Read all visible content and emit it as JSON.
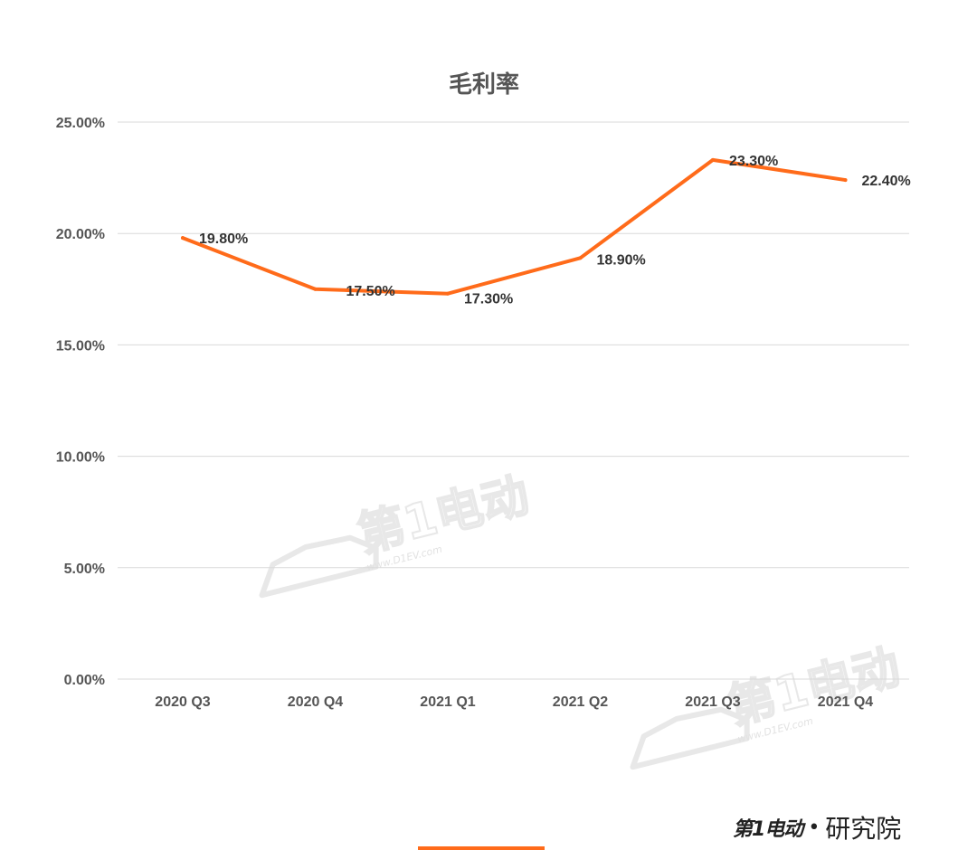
{
  "chart_data": {
    "type": "line",
    "title": "毛利率",
    "categories": [
      "2020 Q3",
      "2020 Q4",
      "2021 Q1",
      "2021 Q2",
      "2021 Q3",
      "2021 Q4"
    ],
    "series": [
      {
        "values": [
          19.8,
          17.5,
          17.3,
          18.9,
          23.3,
          22.4
        ],
        "data_labels": [
          "19.80%",
          "17.50%",
          "17.30%",
          "18.90%",
          "23.30%",
          "22.40%"
        ],
        "color": "#ff6b1a"
      }
    ],
    "ylim": [
      0,
      25
    ],
    "yticks": [
      0,
      5,
      10,
      15,
      20,
      25
    ],
    "ytick_labels": [
      "0.00%",
      "5.00%",
      "10.00%",
      "15.00%",
      "20.00%",
      "25.00%"
    ],
    "grid": true,
    "legend": false
  },
  "watermark": {
    "brand": "第1电动",
    "url": "www.D1EV.com"
  },
  "footer": {
    "brand": "第1电动",
    "separator": "•",
    "sub": "研究院",
    "bar_color": "#ff6b1a"
  }
}
